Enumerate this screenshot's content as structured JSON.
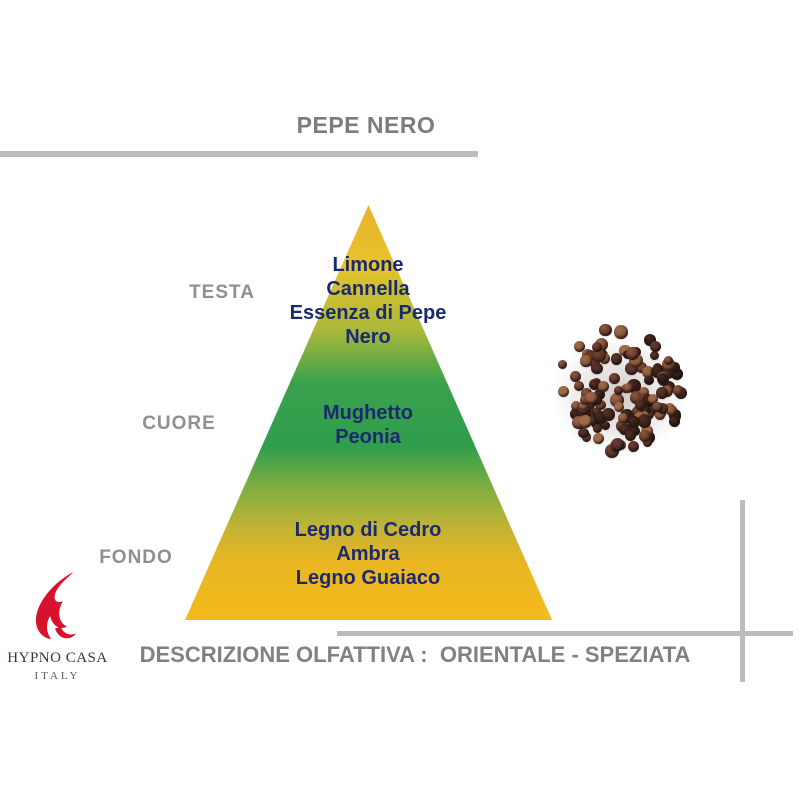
{
  "title": "PEPE NERO",
  "pyramid": {
    "levels": [
      {
        "label": "TESTA",
        "notes": [
          "Limone",
          "Cannella",
          "Essenza di Pepe",
          "Nero"
        ]
      },
      {
        "label": "CUORE",
        "notes": [
          "Mughetto",
          "Peonia"
        ]
      },
      {
        "label": "FONDO",
        "notes": [
          "Legno di Cedro",
          "Ambra",
          "Legno Guaiaco"
        ]
      }
    ],
    "gradient_top": "#e7b130",
    "gradient_middle": "#2f9e4d",
    "gradient_bottom": "#f3ba1b",
    "note_color": "#1b2a6e",
    "label_color": "#8f8f8f"
  },
  "description": "DESCRIZIONE OLFATTIVA :  ORIENTALE - SPEZIATA",
  "logo": {
    "brand": "HYPNO CASA",
    "country": "ITALY",
    "flame_color": "#d8112d"
  },
  "pepper_image": {
    "name": "black-peppercorns-photo",
    "colors": [
      "#2f1b16",
      "#3b211b",
      "#4a2a22",
      "#56302b",
      "#5a342a",
      "#6b3d2e",
      "#7d4836",
      "#8a5a3e",
      "#a06a48"
    ]
  },
  "accent_gray": "#bcbcbc"
}
